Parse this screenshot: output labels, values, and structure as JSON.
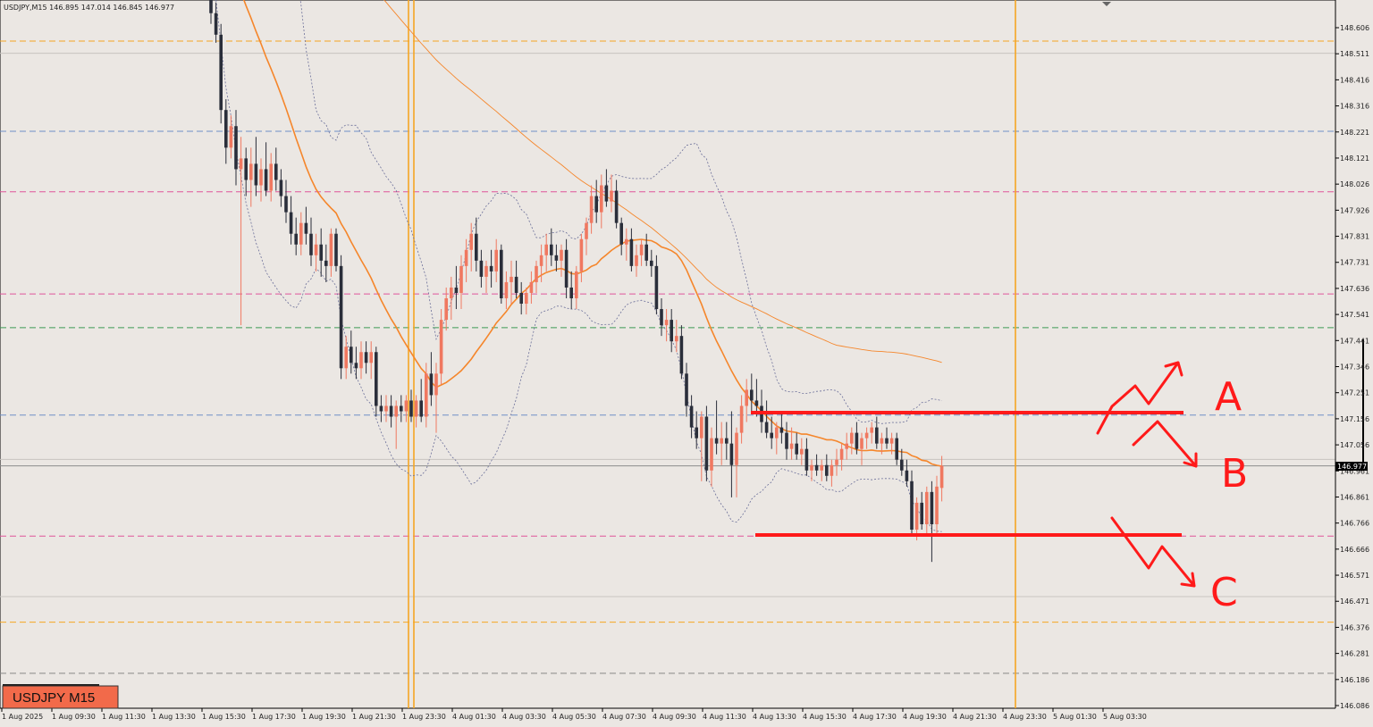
{
  "header": {
    "ohlc_text": "USDJPY,M15  146.895 147.014 146.845 146.977"
  },
  "symbol_label": "USDJPY M15",
  "current_price_label": "146.977",
  "chart_data": {
    "type": "candlestick",
    "symbol": "USDJPY",
    "timeframe": "M15",
    "ohlc": {
      "open": 146.895,
      "high": 147.014,
      "low": 146.845,
      "close": 146.977
    },
    "y_ticks": [
      "148.606",
      "148.511",
      "148.416",
      "148.316",
      "148.221",
      "148.121",
      "148.026",
      "147.926",
      "147.831",
      "147.731",
      "147.636",
      "147.541",
      "147.441",
      "147.346",
      "147.251",
      "147.156",
      "147.056",
      "146.961",
      "146.861",
      "146.766",
      "146.666",
      "146.571",
      "146.471",
      "146.376",
      "146.281",
      "146.186",
      "146.086"
    ],
    "y_range": [
      146.086,
      148.606
    ],
    "x_ticks": [
      "1 Aug 2025",
      "1 Aug 09:30",
      "1 Aug 11:30",
      "1 Aug 13:30",
      "1 Aug 15:30",
      "1 Aug 17:30",
      "1 Aug 19:30",
      "1 Aug 21:30",
      "1 Aug 23:30",
      "4 Aug 01:30",
      "4 Aug 03:30",
      "4 Aug 05:30",
      "4 Aug 07:30",
      "4 Aug 09:30",
      "4 Aug 11:30",
      "4 Aug 13:30",
      "4 Aug 15:30",
      "4 Aug 17:30",
      "4 Aug 19:30",
      "4 Aug 21:30",
      "4 Aug 23:30",
      "5 Aug 01:30",
      "5 Aug 03:30"
    ],
    "current_price": 146.977,
    "horizontal_levels": [
      {
        "price": 148.556,
        "color": "#f5a623",
        "style": "dashed"
      },
      {
        "price": 148.221,
        "color": "#6f8fc7",
        "style": "dashed"
      },
      {
        "price": 147.996,
        "color": "#e0559a",
        "style": "dashed"
      },
      {
        "price": 147.616,
        "color": "#e0559a",
        "style": "dashed"
      },
      {
        "price": 147.491,
        "color": "#3c9a54",
        "style": "dashed"
      },
      {
        "price": 147.166,
        "color": "#6f8fc7",
        "style": "dashed"
      },
      {
        "price": 146.716,
        "color": "#e0559a",
        "style": "dashed"
      },
      {
        "price": 146.396,
        "color": "#f5a623",
        "style": "dashed"
      },
      {
        "price": 146.206,
        "color": "#888888",
        "style": "dashed"
      },
      {
        "price": 148.511,
        "color": "#c8c4c0",
        "style": "solid"
      },
      {
        "price": 147.001,
        "color": "#c8c4c0",
        "style": "solid"
      },
      {
        "price": 146.491,
        "color": "#c8c4c0",
        "style": "solid"
      }
    ],
    "vertical_markers": [
      "1 Aug 23:30",
      "4 Aug 23:30"
    ],
    "candles": [
      [
        148.72,
        148.76,
        148.62,
        148.66
      ],
      [
        148.66,
        148.7,
        148.55,
        148.58
      ],
      [
        148.58,
        148.62,
        148.25,
        148.3
      ],
      [
        148.3,
        148.34,
        148.1,
        148.16
      ],
      [
        148.16,
        148.28,
        148.12,
        148.24
      ],
      [
        148.24,
        148.3,
        148.02,
        148.08
      ],
      [
        148.08,
        148.2,
        147.5,
        148.12
      ],
      [
        148.12,
        148.16,
        147.98,
        148.04
      ],
      [
        148.04,
        148.16,
        147.94,
        148.1
      ],
      [
        148.1,
        148.2,
        147.98,
        148.02
      ],
      [
        148.02,
        148.12,
        147.96,
        148.08
      ],
      [
        148.08,
        148.18,
        147.98,
        148.0
      ],
      [
        148.0,
        148.14,
        147.96,
        148.1
      ],
      [
        148.1,
        148.16,
        148.0,
        148.04
      ],
      [
        148.04,
        148.08,
        147.94,
        147.98
      ],
      [
        147.98,
        148.04,
        147.88,
        147.92
      ],
      [
        147.92,
        147.98,
        147.8,
        147.84
      ],
      [
        147.84,
        147.9,
        147.76,
        147.8
      ],
      [
        147.8,
        147.92,
        147.76,
        147.88
      ],
      [
        147.88,
        147.94,
        147.8,
        147.84
      ],
      [
        147.84,
        147.9,
        147.72,
        147.76
      ],
      [
        147.76,
        147.84,
        147.7,
        147.8
      ],
      [
        147.8,
        147.86,
        147.68,
        147.74
      ],
      [
        147.74,
        147.8,
        147.66,
        147.72
      ],
      [
        147.72,
        147.86,
        147.68,
        147.84
      ],
      [
        147.84,
        147.86,
        147.7,
        147.72
      ],
      [
        147.72,
        147.76,
        147.3,
        147.34
      ],
      [
        147.34,
        147.46,
        147.3,
        147.42
      ],
      [
        147.42,
        147.48,
        147.32,
        147.36
      ],
      [
        147.36,
        147.42,
        147.3,
        147.34
      ],
      [
        147.34,
        147.44,
        147.3,
        147.4
      ],
      [
        147.4,
        147.44,
        147.32,
        147.36
      ],
      [
        147.36,
        147.44,
        147.3,
        147.4
      ],
      [
        147.4,
        147.42,
        147.16,
        147.2
      ],
      [
        147.2,
        147.24,
        147.14,
        147.18
      ],
      [
        147.18,
        147.24,
        147.14,
        147.2
      ],
      [
        147.2,
        147.24,
        147.12,
        147.16
      ],
      [
        147.16,
        147.22,
        147.04,
        147.2
      ],
      [
        147.2,
        147.24,
        147.14,
        147.18
      ],
      [
        147.18,
        147.24,
        147.14,
        147.22
      ],
      [
        147.22,
        147.26,
        147.14,
        147.16
      ],
      [
        147.16,
        147.24,
        147.12,
        147.22
      ],
      [
        147.22,
        147.3,
        147.14,
        147.16
      ],
      [
        147.16,
        147.36,
        147.12,
        147.32
      ],
      [
        147.32,
        147.4,
        147.2,
        147.24
      ],
      [
        147.24,
        147.36,
        147.1,
        147.32
      ],
      [
        147.32,
        147.56,
        147.28,
        147.52
      ],
      [
        147.52,
        147.64,
        147.48,
        147.6
      ],
      [
        147.6,
        147.68,
        147.52,
        147.64
      ],
      [
        147.64,
        147.72,
        147.56,
        147.62
      ],
      [
        147.62,
        147.76,
        147.56,
        147.72
      ],
      [
        147.72,
        147.82,
        147.66,
        147.78
      ],
      [
        147.78,
        147.88,
        147.7,
        147.84
      ],
      [
        147.84,
        147.9,
        147.7,
        147.74
      ],
      [
        147.74,
        147.78,
        147.64,
        147.68
      ],
      [
        147.68,
        147.74,
        147.62,
        147.72
      ],
      [
        147.72,
        147.78,
        147.64,
        147.7
      ],
      [
        147.7,
        147.82,
        147.66,
        147.78
      ],
      [
        147.78,
        147.8,
        147.58,
        147.6
      ],
      [
        147.6,
        147.7,
        147.56,
        147.66
      ],
      [
        147.66,
        147.74,
        147.58,
        147.68
      ],
      [
        147.68,
        147.74,
        147.6,
        147.62
      ],
      [
        147.62,
        147.66,
        147.54,
        147.58
      ],
      [
        147.58,
        147.64,
        147.54,
        147.62
      ],
      [
        147.62,
        147.7,
        147.58,
        147.66
      ],
      [
        147.66,
        147.74,
        147.62,
        147.72
      ],
      [
        147.72,
        147.8,
        147.66,
        147.76
      ],
      [
        147.76,
        147.84,
        147.7,
        147.8
      ],
      [
        147.8,
        147.86,
        147.72,
        147.76
      ],
      [
        147.76,
        147.8,
        147.7,
        147.74
      ],
      [
        147.74,
        147.8,
        147.68,
        147.78
      ],
      [
        147.78,
        147.82,
        147.6,
        147.64
      ],
      [
        147.64,
        147.7,
        147.56,
        147.6
      ],
      [
        147.6,
        147.72,
        147.56,
        147.7
      ],
      [
        147.7,
        147.84,
        147.66,
        147.82
      ],
      [
        147.82,
        147.9,
        147.76,
        147.88
      ],
      [
        147.88,
        148.02,
        147.84,
        147.98
      ],
      [
        147.98,
        148.04,
        147.88,
        147.92
      ],
      [
        147.92,
        148.06,
        147.86,
        148.02
      ],
      [
        148.02,
        148.08,
        147.94,
        147.96
      ],
      [
        147.96,
        148.06,
        147.92,
        148.0
      ],
      [
        148.0,
        148.04,
        147.86,
        147.88
      ],
      [
        147.88,
        147.9,
        147.76,
        147.8
      ],
      [
        147.8,
        147.86,
        147.74,
        147.82
      ],
      [
        147.82,
        147.86,
        147.7,
        147.72
      ],
      [
        147.72,
        147.8,
        147.68,
        147.76
      ],
      [
        147.76,
        147.82,
        147.72,
        147.8
      ],
      [
        147.8,
        147.84,
        147.72,
        147.74
      ],
      [
        147.74,
        147.78,
        147.68,
        147.72
      ],
      [
        147.72,
        147.76,
        147.54,
        147.56
      ],
      [
        147.56,
        147.6,
        147.46,
        147.5
      ],
      [
        147.5,
        147.56,
        147.44,
        147.52
      ],
      [
        147.52,
        147.56,
        147.4,
        147.44
      ],
      [
        147.44,
        147.52,
        147.4,
        147.46
      ],
      [
        147.46,
        147.5,
        147.3,
        147.32
      ],
      [
        147.32,
        147.36,
        147.16,
        147.2
      ],
      [
        147.2,
        147.24,
        147.08,
        147.12
      ],
      [
        147.12,
        147.18,
        147.04,
        147.08
      ],
      [
        147.08,
        147.18,
        146.92,
        147.16
      ],
      [
        147.16,
        147.2,
        146.92,
        146.96
      ],
      [
        146.96,
        147.12,
        146.9,
        147.08
      ],
      [
        147.08,
        147.22,
        147.02,
        147.06
      ],
      [
        147.06,
        147.14,
        146.98,
        147.08
      ],
      [
        147.08,
        147.14,
        147.0,
        147.06
      ],
      [
        147.06,
        147.18,
        146.86,
        146.98
      ],
      [
        146.98,
        147.12,
        146.86,
        147.1
      ],
      [
        147.1,
        147.24,
        147.06,
        147.2
      ],
      [
        147.2,
        147.3,
        147.14,
        147.26
      ],
      [
        147.26,
        147.32,
        147.18,
        147.22
      ],
      [
        147.22,
        147.3,
        147.16,
        147.2
      ],
      [
        147.2,
        147.26,
        147.1,
        147.14
      ],
      [
        147.14,
        147.22,
        147.08,
        147.1
      ],
      [
        147.1,
        147.16,
        147.04,
        147.08
      ],
      [
        147.08,
        147.14,
        147.02,
        147.12
      ],
      [
        147.12,
        147.18,
        147.06,
        147.1
      ],
      [
        147.1,
        147.14,
        147.0,
        147.04
      ],
      [
        147.04,
        147.12,
        147.0,
        147.06
      ],
      [
        147.06,
        147.1,
        147.0,
        147.02
      ],
      [
        147.02,
        147.08,
        146.98,
        147.04
      ],
      [
        147.04,
        147.08,
        146.94,
        146.96
      ],
      [
        146.96,
        147.0,
        146.92,
        146.98
      ],
      [
        146.98,
        147.02,
        146.94,
        146.96
      ],
      [
        146.96,
        147.0,
        146.92,
        146.98
      ],
      [
        146.98,
        147.02,
        146.92,
        146.94
      ],
      [
        146.94,
        147.0,
        146.9,
        146.98
      ],
      [
        146.98,
        147.04,
        146.94,
        147.0
      ],
      [
        147.0,
        147.06,
        146.96,
        147.04
      ],
      [
        147.04,
        147.1,
        147.0,
        147.06
      ],
      [
        147.06,
        147.12,
        147.02,
        147.1
      ],
      [
        147.1,
        147.14,
        147.02,
        147.04
      ],
      [
        147.04,
        147.1,
        146.98,
        147.08
      ],
      [
        147.08,
        147.12,
        147.04,
        147.1
      ],
      [
        147.1,
        147.14,
        147.06,
        147.12
      ],
      [
        147.12,
        147.16,
        147.04,
        147.06
      ],
      [
        147.06,
        147.1,
        147.02,
        147.08
      ],
      [
        147.08,
        147.12,
        147.04,
        147.06
      ],
      [
        147.06,
        147.1,
        147.02,
        147.08
      ],
      [
        147.08,
        147.1,
        146.98,
        147.0
      ],
      [
        147.0,
        147.04,
        146.94,
        146.96
      ],
      [
        146.96,
        147.0,
        146.9,
        146.92
      ],
      [
        146.92,
        146.96,
        146.72,
        146.74
      ],
      [
        146.74,
        146.86,
        146.7,
        146.84
      ],
      [
        146.84,
        146.88,
        146.74,
        146.76
      ],
      [
        146.76,
        146.9,
        146.72,
        146.88
      ],
      [
        146.88,
        146.92,
        146.62,
        146.76
      ],
      [
        146.76,
        146.94,
        146.72,
        146.9
      ],
      [
        146.895,
        147.014,
        146.845,
        146.977
      ]
    ]
  },
  "annotations": {
    "labels": [
      "A",
      "B",
      "C"
    ]
  }
}
